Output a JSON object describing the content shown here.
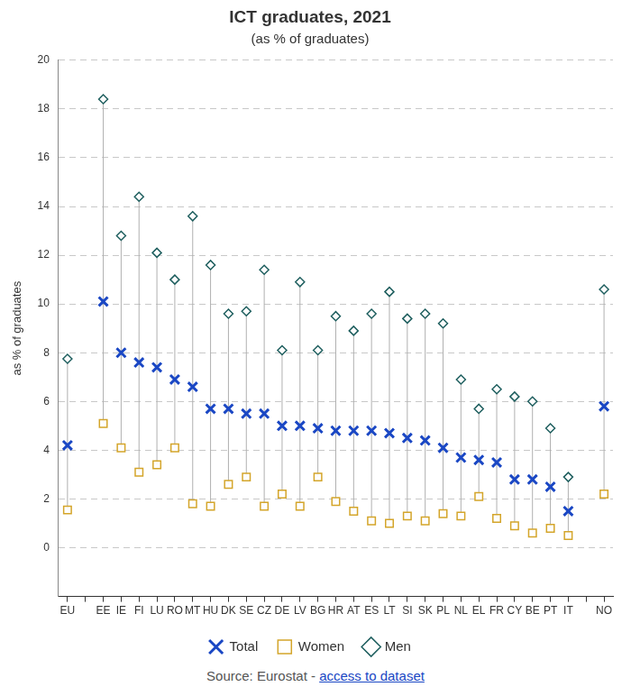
{
  "chart_data": {
    "type": "dot",
    "title": "ICT graduates, 2021",
    "subtitle": "(as % of graduates)",
    "y_label": "as % of graduates",
    "source": "Source: Eurostat - ",
    "source_link": "access to dataset",
    "categories": [
      "EU",
      null,
      "EE",
      "IE",
      "FI",
      "LU",
      "RO",
      "MT",
      "HU",
      "DK",
      "SE",
      "CZ",
      "DE",
      "LV",
      "BG",
      "HR",
      "AT",
      "ES",
      "LT",
      "SI",
      "SK",
      "PL",
      "NL",
      "EL",
      "FR",
      "CY",
      "BE",
      "PT",
      "IT",
      null,
      "NO"
    ],
    "series": [
      {
        "name": "Total",
        "color": "#1a47c4",
        "marker": "x",
        "values": [
          4.2,
          null,
          10.1,
          8.0,
          7.6,
          7.4,
          6.9,
          6.6,
          5.7,
          5.7,
          5.5,
          5.5,
          5.0,
          5.0,
          4.9,
          4.8,
          4.8,
          4.8,
          4.7,
          4.5,
          4.4,
          4.1,
          3.7,
          3.6,
          3.5,
          2.8,
          2.8,
          2.5,
          1.5,
          null,
          5.8
        ]
      },
      {
        "name": "Women",
        "color": "#d4a52a",
        "marker": "square",
        "values": [
          1.55,
          null,
          5.1,
          4.1,
          3.1,
          3.4,
          4.1,
          1.8,
          1.7,
          2.6,
          2.9,
          1.7,
          2.2,
          1.7,
          2.9,
          1.9,
          1.5,
          1.1,
          1.0,
          1.3,
          1.1,
          1.4,
          1.3,
          2.1,
          1.2,
          0.9,
          0.6,
          0.8,
          0.5,
          null,
          2.2
        ]
      },
      {
        "name": "Men",
        "color": "#1f5f5f",
        "marker": "diamond",
        "values": [
          7.75,
          null,
          18.4,
          12.8,
          14.4,
          12.1,
          11.0,
          13.6,
          11.6,
          9.6,
          9.7,
          11.4,
          8.1,
          10.9,
          8.1,
          9.5,
          8.9,
          9.6,
          10.5,
          9.4,
          9.6,
          9.2,
          6.9,
          5.7,
          6.5,
          6.2,
          6.0,
          4.9,
          2.9,
          null,
          10.6
        ]
      }
    ],
    "ylim": [
      -2,
      20
    ],
    "yticks": [
      0,
      2,
      4,
      6,
      8,
      10,
      12,
      14,
      16,
      18,
      20
    ],
    "grid": true,
    "legend": "bottom"
  }
}
